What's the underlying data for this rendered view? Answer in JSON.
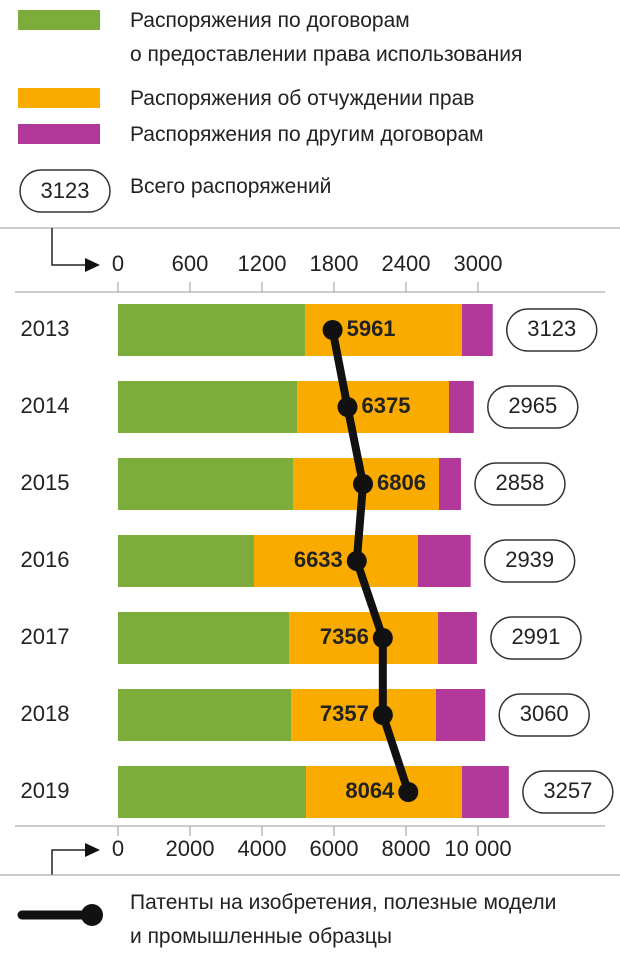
{
  "chart_data": {
    "type": "bar",
    "orientation": "horizontal",
    "stacked": true,
    "categories": [
      "2013",
      "2014",
      "2015",
      "2016",
      "2017",
      "2018",
      "2019"
    ],
    "series": [
      {
        "name": "Распоряжения по договорам\nо предоставлении права использования",
        "color": "#7cad3a",
        "values": [
          1558,
          1492,
          1458,
          1133,
          1425,
          1442,
          1567
        ]
      },
      {
        "name": "Распоряжения об отчуждении прав",
        "color": "#f9ab00",
        "values": [
          1309,
          1266,
          1217,
          1367,
          1242,
          1208,
          1300
        ]
      },
      {
        "name": "Распоряжения по другим договорам",
        "color": "#b2399a",
        "values": [
          256,
          207,
          183,
          439,
          324,
          410,
          390
        ]
      }
    ],
    "totals_name": "Всего распоряжений",
    "totals": [
      3123,
      2965,
      2858,
      2939,
      2991,
      3060,
      3257
    ],
    "xlim": [
      0,
      3000
    ],
    "xticks": [
      0,
      600,
      1200,
      1800,
      2400,
      3000
    ],
    "line": {
      "type": "line",
      "name": "Патенты на изобретения, полезные модели\nи промышленные образцы",
      "color": "#111111",
      "values": [
        5961,
        6375,
        6806,
        6633,
        7356,
        7357,
        8064
      ]
    },
    "x2lim": [
      0,
      10000
    ],
    "x2ticks": [
      0,
      2000,
      4000,
      6000,
      8000,
      {
        "value": 10000,
        "label": "10 000"
      }
    ]
  }
}
